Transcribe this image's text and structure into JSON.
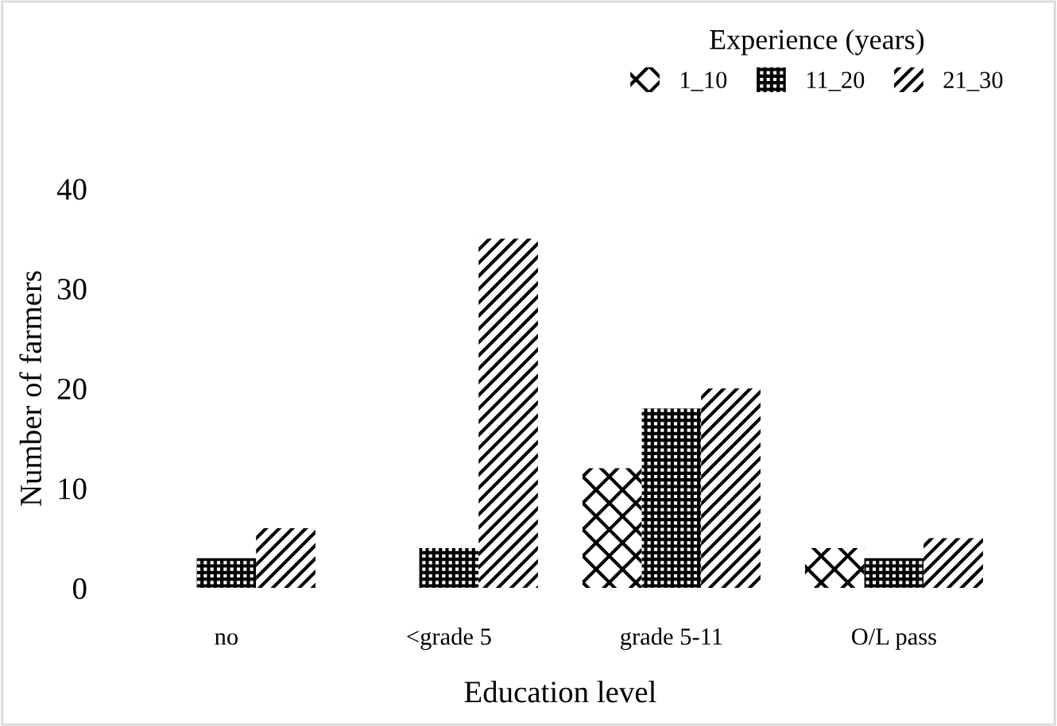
{
  "chart_data": {
    "type": "bar",
    "xlabel": "Education level",
    "ylabel": "Number of farmers",
    "legend_title": "Experience (years)",
    "legend": "top right",
    "grid": false,
    "categories": [
      "no",
      "<grade 5",
      "grade 5-11",
      "O/L pass"
    ],
    "series": [
      {
        "name": "1_10",
        "color": "#000000",
        "values": [
          0,
          0,
          12,
          4
        ]
      },
      {
        "name": "11_20",
        "color": "#000000",
        "values": [
          3,
          4,
          18,
          3
        ]
      },
      {
        "name": "21_30",
        "color": "#000000",
        "values": [
          6,
          35,
          20,
          5
        ]
      }
    ],
    "ylim": [
      0,
      40
    ],
    "yticks": [
      0,
      10,
      20,
      30,
      40
    ]
  }
}
